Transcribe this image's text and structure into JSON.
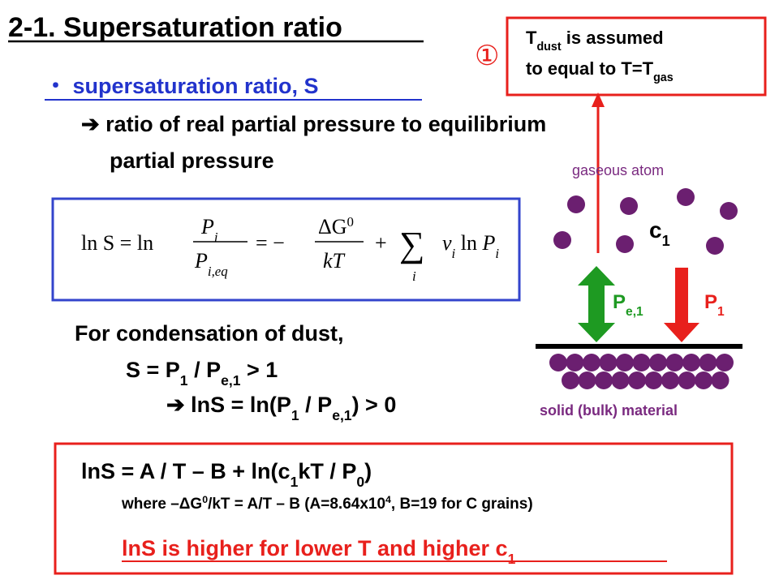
{
  "title": "2-1. Supersaturation ratio",
  "bullet": "・ supersaturation ratio, S",
  "definition": [
    "➔ ratio of real partial pressure to equilibrium",
    "partial pressure"
  ],
  "formula": {
    "lhs": "ln S = ln",
    "num1": [
      "P",
      "i"
    ],
    "den1": [
      "P",
      "i,eq"
    ],
    "eq": "= −",
    "num2": [
      "ΔG",
      "0"
    ],
    "den2": "kT",
    "plus": "+",
    "sum": "∑",
    "sum_index": "i",
    "term": [
      "ν",
      "i",
      " ln ",
      "P",
      "i"
    ]
  },
  "condensation": {
    "heading": "For condensation of dust,",
    "condition": [
      "S = P",
      "1",
      " / P",
      "e,1",
      " > 1"
    ],
    "log_condition": [
      "➔ lnS = ln(P",
      "1",
      " / P",
      "e,1",
      ") > 0"
    ]
  },
  "note": {
    "marker": "①",
    "line1": [
      "T",
      "dust",
      " is assumed"
    ],
    "line2": [
      "to equal to T=T",
      "gas"
    ]
  },
  "diagram": {
    "gas_label": "gaseous atom",
    "concentration": [
      "c",
      "1"
    ],
    "equilibrium_pressure": [
      "P",
      "e,1"
    ],
    "partial_pressure": [
      "P",
      "1"
    ],
    "solid_label": "solid (bulk) material"
  },
  "result": {
    "equation": [
      "lnS = A / T – B + ln(c",
      "1",
      "kT / P",
      "0",
      ")"
    ],
    "where": [
      "where –ΔG",
      "0",
      "/kT = A/T – B (A=8.64x10",
      "4",
      ", B=19 for C grains)"
    ],
    "conclusion": [
      "lnS is higher for lower T and higher c",
      "1"
    ]
  }
}
